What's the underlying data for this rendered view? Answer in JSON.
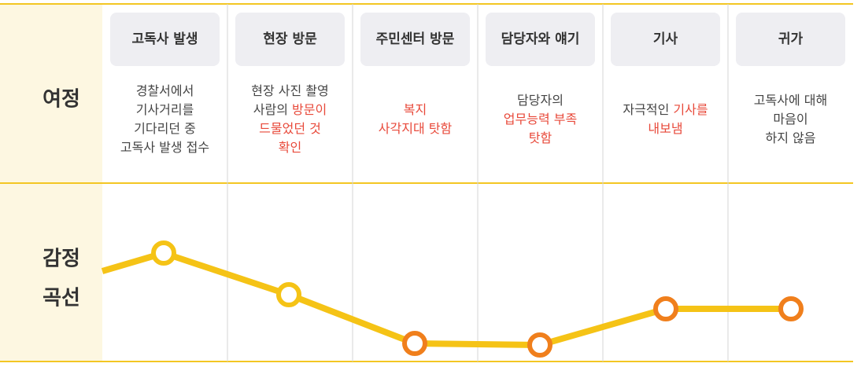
{
  "row_labels": {
    "journey": "여정",
    "emotion": [
      "감정",
      "곡선"
    ]
  },
  "stages": [
    {
      "title": "고독사 발생",
      "description": [
        [
          {
            "text": "경찰서에서"
          }
        ],
        [
          {
            "text": "기사거리를"
          }
        ],
        [
          {
            "text": "기다리던 중"
          }
        ],
        [
          {
            "text": "고독사 발생 접수"
          }
        ]
      ]
    },
    {
      "title": "현장 방문",
      "description": [
        [
          {
            "text": "현장 사진 촬영"
          }
        ],
        [
          {
            "text": "사람의 "
          },
          {
            "text": "방문이",
            "emphasis": true
          }
        ],
        [
          {
            "text": "드물었던 것",
            "emphasis": true
          }
        ],
        [
          {
            "text": "확인",
            "emphasis": true
          }
        ]
      ]
    },
    {
      "title": "주민센터 방문",
      "description": [
        [
          {
            "text": "복지",
            "emphasis": true
          }
        ],
        [
          {
            "text": "사각지대 탓함",
            "emphasis": true
          }
        ]
      ]
    },
    {
      "title": "담당자와 얘기",
      "description": [
        [
          {
            "text": "담당자의"
          }
        ],
        [
          {
            "text": "업무능력 부족",
            "emphasis": true
          }
        ],
        [
          {
            "text": "탓함",
            "emphasis": true
          }
        ]
      ]
    },
    {
      "title": "기사",
      "description": [
        [
          {
            "text": "자극적인 "
          },
          {
            "text": "기사를",
            "emphasis": true
          }
        ],
        [
          {
            "text": "내보냄",
            "emphasis": true
          }
        ]
      ]
    },
    {
      "title": "귀가",
      "description": [
        [
          {
            "text": "고독사에 대해"
          }
        ],
        [
          {
            "text": "마음이"
          }
        ],
        [
          {
            "text": "하지 않음"
          }
        ]
      ]
    }
  ]
}
